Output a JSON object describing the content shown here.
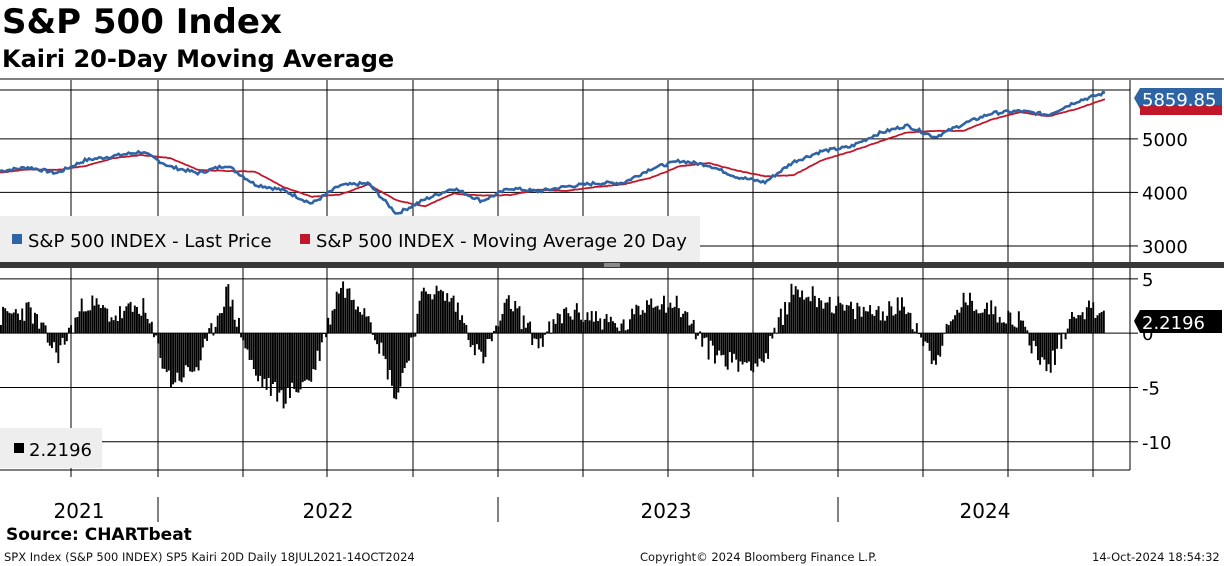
{
  "header": {
    "title": "S&P 500 Index",
    "subtitle": "Kairi 20-Day Moving Average"
  },
  "footer": {
    "source": "Source: CHARTbeat",
    "left": "SPX Index (S&P 500 INDEX) SP5 Kairi 20D  Daily 18JUL2021-14OCT2024",
    "center": "Copyright© 2024 Bloomberg Finance L.P.",
    "right": "14-Oct-2024 18:54:32"
  },
  "colors": {
    "price": "#2e64a4",
    "ma": "#c0182a",
    "kairi": "#000000",
    "grid": "#000000"
  },
  "chart_data": [
    {
      "type": "line",
      "title": "S&P 500 Index",
      "ylim": [
        2700,
        6100
      ],
      "yticks": [
        3000,
        4000,
        5000
      ],
      "xticks": [
        "2021",
        "2022",
        "2023",
        "2024"
      ],
      "legend": [
        "S&P 500 INDEX - Last Price",
        "S&P 500 INDEX - Moving Average 20 Day"
      ],
      "last_value_label": "5859.85",
      "series": [
        {
          "name": "S&P 500 INDEX - Last Price",
          "x": [
            "2021-07",
            "2021-08",
            "2021-09",
            "2021-10",
            "2021-11",
            "2021-12",
            "2022-01",
            "2022-02",
            "2022-03",
            "2022-04",
            "2022-05",
            "2022-06",
            "2022-07",
            "2022-08",
            "2022-09",
            "2022-10",
            "2022-11",
            "2022-12",
            "2023-01",
            "2023-02",
            "2023-03",
            "2023-04",
            "2023-05",
            "2023-06",
            "2023-07",
            "2023-08",
            "2023-09",
            "2023-10",
            "2023-11",
            "2023-12",
            "2024-01",
            "2024-02",
            "2024-03",
            "2024-04",
            "2024-05",
            "2024-06",
            "2024-07",
            "2024-08",
            "2024-09",
            "2024-10"
          ],
          "values": [
            4400,
            4470,
            4360,
            4600,
            4680,
            4760,
            4480,
            4360,
            4510,
            4150,
            4040,
            3790,
            4130,
            4170,
            3600,
            3870,
            4080,
            3840,
            4080,
            4020,
            4110,
            4170,
            4180,
            4450,
            4590,
            4510,
            4290,
            4190,
            4570,
            4770,
            4850,
            5100,
            5250,
            5035,
            5280,
            5480,
            5520,
            5450,
            5700,
            5860
          ]
        },
        {
          "name": "S&P 500 INDEX - Moving Average 20 Day",
          "x": [
            "2021-07",
            "2021-08",
            "2021-09",
            "2021-10",
            "2021-11",
            "2021-12",
            "2022-01",
            "2022-02",
            "2022-03",
            "2022-04",
            "2022-05",
            "2022-06",
            "2022-07",
            "2022-08",
            "2022-09",
            "2022-10",
            "2022-11",
            "2022-12",
            "2023-01",
            "2023-02",
            "2023-03",
            "2023-04",
            "2023-05",
            "2023-06",
            "2023-07",
            "2023-08",
            "2023-09",
            "2023-10",
            "2023-11",
            "2023-12",
            "2024-01",
            "2024-02",
            "2024-03",
            "2024-04",
            "2024-05",
            "2024-06",
            "2024-07",
            "2024-08",
            "2024-09",
            "2024-10"
          ],
          "values": [
            4370,
            4430,
            4420,
            4490,
            4640,
            4700,
            4640,
            4420,
            4400,
            4390,
            4100,
            3920,
            3960,
            4150,
            3850,
            3740,
            3980,
            3940,
            3950,
            4050,
            4030,
            4100,
            4150,
            4280,
            4490,
            4550,
            4410,
            4300,
            4320,
            4600,
            4760,
            4940,
            5120,
            5150,
            5150,
            5360,
            5500,
            5420,
            5560,
            5740
          ]
        }
      ]
    },
    {
      "type": "bar",
      "title": "SP5 Kairi 20D",
      "ylim": [
        -12.6,
        6.0
      ],
      "yticks": [
        5,
        0,
        -5,
        -10
      ],
      "legend": [
        "2.2196"
      ],
      "last_value_label": "2.2196",
      "series": [
        {
          "name": "Kairi 20D",
          "x": [
            "2021-07",
            "2021-08",
            "2021-09",
            "2021-10",
            "2021-11",
            "2021-12",
            "2022-01",
            "2022-02",
            "2022-03",
            "2022-04",
            "2022-05",
            "2022-06",
            "2022-07",
            "2022-08",
            "2022-09",
            "2022-10",
            "2022-11",
            "2022-12",
            "2023-01",
            "2023-02",
            "2023-03",
            "2023-04",
            "2023-05",
            "2023-06",
            "2023-07",
            "2023-08",
            "2023-09",
            "2023-10",
            "2023-11",
            "2023-12",
            "2024-01",
            "2024-02",
            "2024-03",
            "2024-04",
            "2024-05",
            "2024-06",
            "2024-07",
            "2024-08",
            "2024-09",
            "2024-10"
          ],
          "values": [
            1.5,
            2.2,
            -2.0,
            3.0,
            1.5,
            2.5,
            -4.5,
            -3.0,
            4.0,
            -4.0,
            -6.0,
            -4.0,
            4.5,
            2.0,
            -6.0,
            4.2,
            3.0,
            -2.5,
            3.0,
            -1.0,
            2.0,
            1.5,
            0.5,
            3.2,
            2.5,
            -1.5,
            -2.8,
            -2.5,
            4.0,
            3.2,
            2.0,
            2.0,
            2.5,
            -2.5,
            3.0,
            2.2,
            1.2,
            -3.5,
            2.2,
            2.2
          ]
        }
      ]
    }
  ]
}
